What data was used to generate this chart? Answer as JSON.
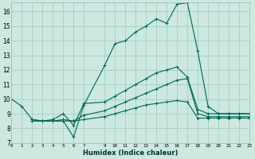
{
  "xlabel": "Humidex (Indice chaleur)",
  "background_color": "#cce8e0",
  "grid_color": "#99ccbb",
  "line_color": "#006655",
  "xlim": [
    0,
    23
  ],
  "ylim": [
    7,
    16.6
  ],
  "yticks": [
    7,
    8,
    9,
    10,
    11,
    12,
    13,
    14,
    15,
    16
  ],
  "xticks": [
    0,
    1,
    2,
    3,
    4,
    5,
    6,
    7,
    9,
    10,
    11,
    12,
    13,
    14,
    15,
    16,
    17,
    18,
    19,
    20,
    21,
    22,
    23
  ],
  "line1_x": [
    0,
    1,
    2,
    3,
    4,
    5,
    6,
    7,
    9,
    10,
    11,
    12,
    13,
    14,
    15,
    16,
    17,
    18,
    19,
    20,
    21,
    22,
    23
  ],
  "line1_y": [
    10.0,
    9.5,
    8.6,
    8.5,
    8.5,
    8.5,
    7.4,
    9.6,
    12.3,
    13.8,
    14.0,
    14.6,
    15.0,
    15.5,
    15.2,
    16.5,
    16.6,
    13.3,
    9.5,
    9.0,
    9.0,
    9.0,
    9.0
  ],
  "line2_x": [
    2,
    3,
    4,
    5,
    6,
    7,
    9,
    10,
    11,
    12,
    13,
    14,
    15,
    16,
    17,
    18,
    19,
    20,
    21,
    22,
    23
  ],
  "line2_y": [
    8.6,
    8.5,
    8.6,
    9.0,
    8.2,
    9.7,
    9.8,
    10.2,
    10.6,
    11.0,
    11.4,
    11.8,
    12.0,
    12.2,
    11.5,
    9.3,
    9.0,
    9.0,
    9.0,
    9.0,
    9.0
  ],
  "line3_x": [
    2,
    3,
    4,
    5,
    6,
    7,
    9,
    10,
    11,
    12,
    13,
    14,
    15,
    16,
    17,
    18,
    19,
    20,
    21,
    22,
    23
  ],
  "line3_y": [
    8.5,
    8.5,
    8.5,
    8.6,
    8.5,
    8.9,
    9.2,
    9.5,
    9.8,
    10.1,
    10.4,
    10.7,
    11.0,
    11.3,
    11.4,
    9.0,
    8.8,
    8.8,
    8.8,
    8.8,
    8.8
  ],
  "line4_x": [
    2,
    3,
    4,
    5,
    6,
    7,
    9,
    10,
    11,
    12,
    13,
    14,
    15,
    16,
    17,
    18,
    19,
    20,
    21,
    22,
    23
  ],
  "line4_y": [
    8.5,
    8.5,
    8.5,
    8.5,
    8.5,
    8.6,
    8.8,
    9.0,
    9.2,
    9.4,
    9.6,
    9.7,
    9.8,
    9.9,
    9.8,
    8.7,
    8.7,
    8.7,
    8.7,
    8.7,
    8.7
  ]
}
